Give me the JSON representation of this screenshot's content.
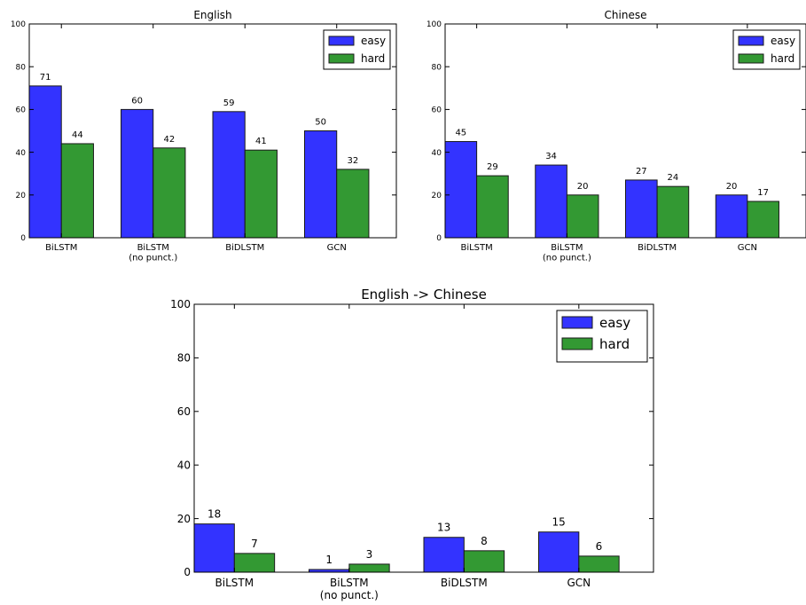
{
  "chart_data": [
    {
      "type": "bar",
      "title": "English",
      "categories": [
        "BiLSTM",
        "BiLSTM\n(no punct.)",
        "BiDLSTM",
        "GCN"
      ],
      "series": [
        {
          "name": "easy",
          "color": "#3333ff",
          "values": [
            71,
            60,
            59,
            50
          ]
        },
        {
          "name": "hard",
          "color": "#339933",
          "values": [
            44,
            42,
            41,
            32
          ]
        }
      ],
      "ylim": [
        0,
        100
      ],
      "yticks": [
        0,
        20,
        40,
        60,
        80,
        100
      ],
      "xlabel": "",
      "ylabel": "",
      "legend": "top-right",
      "grid": false
    },
    {
      "type": "bar",
      "title": "Chinese",
      "categories": [
        "BiLSTM",
        "BiLSTM\n(no punct.)",
        "BiDLSTM",
        "GCN"
      ],
      "series": [
        {
          "name": "easy",
          "color": "#3333ff",
          "values": [
            45,
            34,
            27,
            20
          ]
        },
        {
          "name": "hard",
          "color": "#339933",
          "values": [
            29,
            20,
            24,
            17
          ]
        }
      ],
      "ylim": [
        0,
        100
      ],
      "yticks": [
        0,
        20,
        40,
        60,
        80,
        100
      ],
      "xlabel": "",
      "ylabel": "",
      "legend": "top-right",
      "grid": false
    },
    {
      "type": "bar",
      "title": "English -> Chinese",
      "categories": [
        "BiLSTM",
        "BiLSTM\n(no punct.)",
        "BiDLSTM",
        "GCN"
      ],
      "series": [
        {
          "name": "easy",
          "color": "#3333ff",
          "values": [
            18,
            1,
            13,
            15
          ]
        },
        {
          "name": "hard",
          "color": "#339933",
          "values": [
            7,
            3,
            8,
            6
          ]
        }
      ],
      "ylim": [
        0,
        100
      ],
      "yticks": [
        0,
        20,
        40,
        60,
        80,
        100
      ],
      "xlabel": "",
      "ylabel": "",
      "legend": "top-right",
      "grid": false
    }
  ]
}
